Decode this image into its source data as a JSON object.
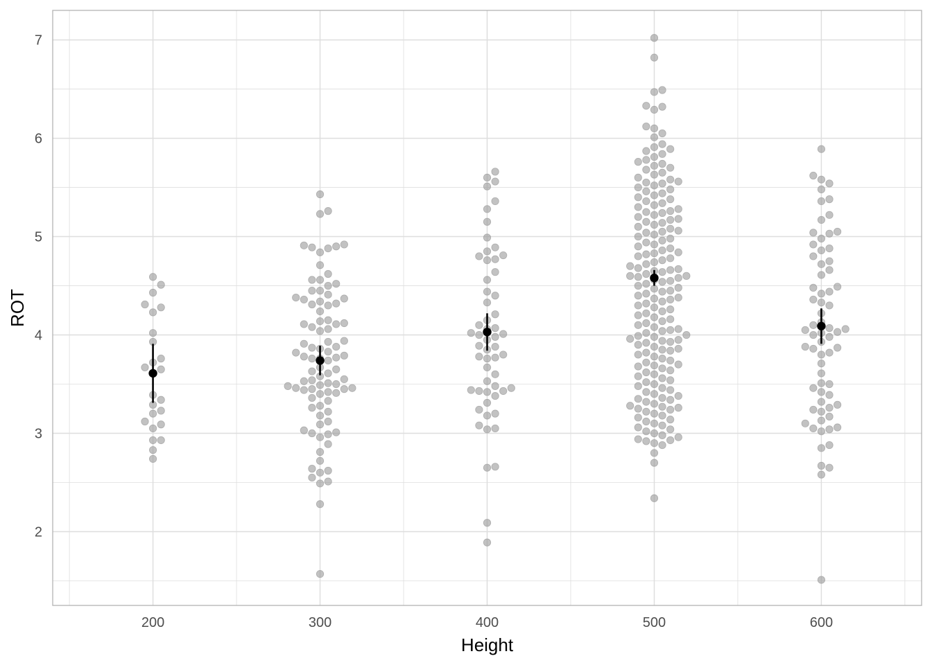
{
  "chart_data": {
    "type": "scatter",
    "subtype": "beeswarm with mean and error bars",
    "title": "",
    "xlabel": "Height",
    "ylabel": "ROT",
    "xlim": [
      140,
      660
    ],
    "ylim": [
      1.25,
      7.3
    ],
    "x_ticks": [
      200,
      300,
      400,
      500,
      600
    ],
    "y_ticks": [
      2,
      3,
      4,
      5,
      6,
      7
    ],
    "grid": true,
    "legend": "none",
    "colors": {
      "points": "#999999",
      "summary": "#000000",
      "grid": "#dedede",
      "border": "#b3b3b3"
    },
    "groups": [
      {
        "x": 200,
        "mean": 3.61,
        "lower": 3.31,
        "upper": 3.91,
        "values": [
          4.59,
          4.51,
          4.43,
          4.31,
          4.28,
          4.23,
          4.02,
          3.93,
          3.76,
          3.72,
          3.67,
          3.65,
          3.61,
          3.39,
          3.34,
          3.29,
          3.23,
          3.2,
          3.12,
          3.09,
          3.05,
          2.93,
          2.93,
          2.83,
          2.74
        ]
      },
      {
        "x": 300,
        "mean": 3.74,
        "lower": 3.59,
        "upper": 3.89,
        "values": [
          5.43,
          5.26,
          5.23,
          4.92,
          4.91,
          4.9,
          4.89,
          4.88,
          4.84,
          4.71,
          4.62,
          4.56,
          4.56,
          4.52,
          4.5,
          4.45,
          4.45,
          4.41,
          4.38,
          4.37,
          4.36,
          4.34,
          4.32,
          4.31,
          4.3,
          4.24,
          4.15,
          4.14,
          4.12,
          4.11,
          4.11,
          4.08,
          4.06,
          4.04,
          3.94,
          3.93,
          3.91,
          3.88,
          3.87,
          3.86,
          3.83,
          3.82,
          3.79,
          3.78,
          3.77,
          3.76,
          3.76,
          3.74,
          3.67,
          3.65,
          3.63,
          3.61,
          3.58,
          3.55,
          3.54,
          3.53,
          3.51,
          3.5,
          3.49,
          3.48,
          3.46,
          3.46,
          3.45,
          3.45,
          3.44,
          3.42,
          3.41,
          3.4,
          3.36,
          3.33,
          3.28,
          3.26,
          3.22,
          3.18,
          3.12,
          3.09,
          3.03,
          3.01,
          3.0,
          2.99,
          2.96,
          2.89,
          2.81,
          2.72,
          2.64,
          2.62,
          2.6,
          2.55,
          2.51,
          2.49,
          2.28,
          1.57
        ]
      },
      {
        "x": 400,
        "mean": 4.03,
        "lower": 3.84,
        "upper": 4.22,
        "values": [
          5.66,
          5.6,
          5.56,
          5.51,
          5.36,
          5.28,
          5.15,
          4.99,
          4.89,
          4.85,
          4.81,
          4.8,
          4.77,
          4.76,
          4.64,
          4.56,
          4.44,
          4.4,
          4.33,
          4.21,
          4.15,
          4.1,
          4.07,
          4.06,
          4.02,
          4.01,
          4.0,
          3.98,
          3.95,
          3.89,
          3.88,
          3.85,
          3.8,
          3.78,
          3.77,
          3.76,
          3.67,
          3.6,
          3.53,
          3.48,
          3.46,
          3.44,
          3.43,
          3.43,
          3.42,
          3.38,
          3.31,
          3.24,
          3.2,
          3.18,
          3.08,
          3.05,
          3.04,
          2.66,
          2.65,
          2.09,
          1.89
        ]
      },
      {
        "x": 500,
        "mean": 4.58,
        "lower": 4.5,
        "upper": 4.66,
        "values": [
          7.02,
          6.82,
          6.49,
          6.47,
          6.33,
          6.32,
          6.29,
          6.12,
          6.1,
          6.05,
          6.01,
          5.94,
          5.91,
          5.89,
          5.87,
          5.84,
          5.81,
          5.78,
          5.76,
          5.74,
          5.72,
          5.7,
          5.68,
          5.65,
          5.63,
          5.6,
          5.58,
          5.56,
          5.55,
          5.54,
          5.52,
          5.5,
          5.48,
          5.46,
          5.44,
          5.42,
          5.4,
          5.38,
          5.36,
          5.34,
          5.32,
          5.3,
          5.28,
          5.26,
          5.25,
          5.24,
          5.22,
          5.2,
          5.18,
          5.17,
          5.15,
          5.14,
          5.12,
          5.1,
          5.08,
          5.06,
          5.05,
          5.04,
          5.02,
          5.0,
          4.98,
          4.96,
          4.94,
          4.92,
          4.9,
          4.88,
          4.86,
          4.84,
          4.83,
          4.82,
          4.8,
          4.78,
          4.76,
          4.74,
          4.72,
          4.7,
          4.68,
          4.67,
          4.66,
          4.65,
          4.64,
          4.62,
          4.6,
          4.6,
          4.59,
          4.58,
          4.56,
          4.55,
          4.54,
          4.52,
          4.5,
          4.48,
          4.47,
          4.45,
          4.44,
          4.42,
          4.4,
          4.38,
          4.37,
          4.36,
          4.34,
          4.32,
          4.3,
          4.28,
          4.26,
          4.24,
          4.22,
          4.2,
          4.18,
          4.16,
          4.14,
          4.12,
          4.1,
          4.08,
          4.06,
          4.05,
          4.04,
          4.02,
          4.0,
          3.99,
          3.98,
          3.96,
          3.95,
          3.94,
          3.93,
          3.92,
          3.9,
          3.88,
          3.86,
          3.85,
          3.84,
          3.82,
          3.8,
          3.78,
          3.76,
          3.74,
          3.72,
          3.7,
          3.69,
          3.68,
          3.66,
          3.64,
          3.62,
          3.6,
          3.58,
          3.56,
          3.54,
          3.52,
          3.5,
          3.48,
          3.46,
          3.44,
          3.42,
          3.4,
          3.38,
          3.36,
          3.35,
          3.34,
          3.32,
          3.3,
          3.28,
          3.27,
          3.26,
          3.25,
          3.24,
          3.22,
          3.2,
          3.18,
          3.16,
          3.14,
          3.12,
          3.1,
          3.08,
          3.06,
          3.04,
          3.02,
          3.0,
          2.98,
          2.96,
          2.94,
          2.93,
          2.92,
          2.9,
          2.88,
          2.8,
          2.7,
          2.34
        ]
      },
      {
        "x": 600,
        "mean": 4.09,
        "lower": 3.91,
        "upper": 4.27,
        "values": [
          5.89,
          5.62,
          5.58,
          5.54,
          5.48,
          5.38,
          5.36,
          5.22,
          5.17,
          5.05,
          5.04,
          5.03,
          4.98,
          4.92,
          4.88,
          4.86,
          4.8,
          4.75,
          4.72,
          4.66,
          4.61,
          4.49,
          4.48,
          4.44,
          4.42,
          4.36,
          4.33,
          4.3,
          4.22,
          4.13,
          4.1,
          4.07,
          4.06,
          4.05,
          4.03,
          4.02,
          4.0,
          3.98,
          3.93,
          3.88,
          3.87,
          3.86,
          3.82,
          3.8,
          3.71,
          3.61,
          3.51,
          3.5,
          3.46,
          3.42,
          3.39,
          3.32,
          3.29,
          3.26,
          3.24,
          3.22,
          3.17,
          3.13,
          3.1,
          3.06,
          3.05,
          3.04,
          3.02,
          2.88,
          2.85,
          2.67,
          2.65,
          2.58,
          1.51
        ]
      }
    ]
  }
}
